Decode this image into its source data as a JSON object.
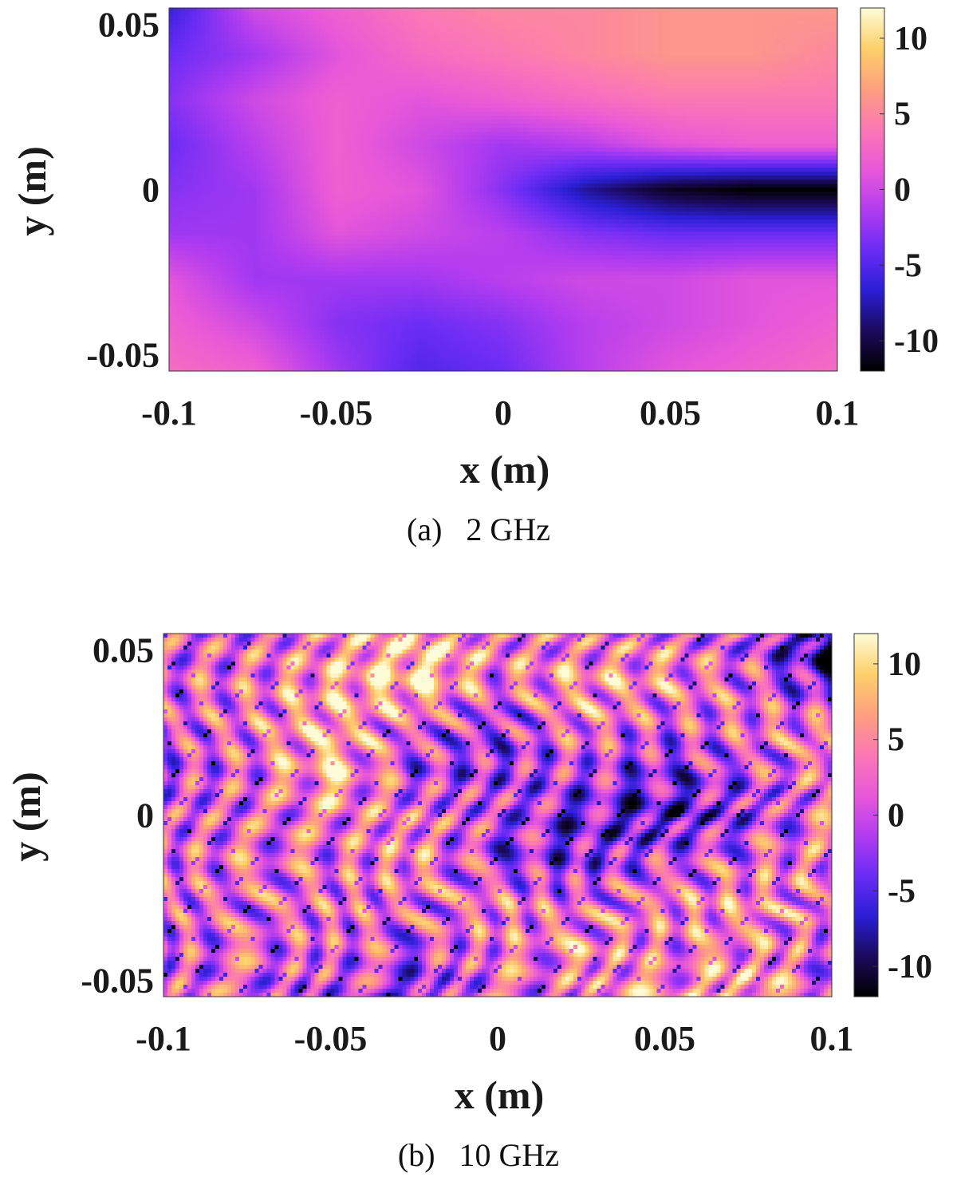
{
  "colormap": [
    "#000000",
    "#1a0a5c",
    "#2b1fd6",
    "#6b2cf5",
    "#b23cf0",
    "#e858d8",
    "#fb78b4",
    "#fda07e",
    "#fdd06a",
    "#fefcd8"
  ],
  "chart_data": [
    {
      "type": "heatmap",
      "caption": "(a)   2 GHz",
      "xlabel": "x (m)",
      "ylabel": "y (m)",
      "xlim": [
        -0.1,
        0.1
      ],
      "ylim": [
        -0.055,
        0.055
      ],
      "clim": [
        -12,
        12
      ],
      "xticks": [
        {
          "v": -0.1,
          "label": "-0.1"
        },
        {
          "v": -0.05,
          "label": "-0.05"
        },
        {
          "v": 0,
          "label": "0"
        },
        {
          "v": 0.05,
          "label": "0.05"
        },
        {
          "v": 0.1,
          "label": "0.1"
        }
      ],
      "yticks": [
        {
          "v": 0.05,
          "label": "0.05"
        },
        {
          "v": 0,
          "label": "0"
        },
        {
          "v": -0.05,
          "label": "-0.05"
        }
      ],
      "cticks": [
        {
          "v": 10,
          "label": "10"
        },
        {
          "v": 5,
          "label": "5"
        },
        {
          "v": 0,
          "label": "0"
        },
        {
          "v": -5,
          "label": "-5"
        },
        {
          "v": -10,
          "label": "-10"
        }
      ],
      "colorbar": "right",
      "pattern": "smooth",
      "grid": [
        [
          -6,
          0,
          2,
          4,
          5,
          5,
          6,
          6,
          6
        ],
        [
          -4,
          -2,
          1,
          3,
          4,
          5,
          6,
          6,
          5
        ],
        [
          -3,
          0,
          2,
          1,
          2,
          3,
          4,
          4,
          4
        ],
        [
          -4,
          -1,
          2,
          0,
          -2,
          -1,
          1,
          2,
          2
        ],
        [
          -3,
          -2,
          2,
          1,
          -3,
          -8,
          -11,
          -12,
          -12
        ],
        [
          -2,
          -2,
          1,
          0,
          -1,
          -3,
          -4,
          -4,
          -4
        ],
        [
          1,
          -2,
          -2,
          -2,
          -1,
          0,
          0,
          1,
          1
        ],
        [
          2,
          0,
          -3,
          -4,
          -3,
          -1,
          0,
          1,
          2
        ],
        [
          3,
          2,
          -2,
          -5,
          -4,
          -1,
          1,
          2,
          3
        ]
      ]
    },
    {
      "type": "heatmap",
      "caption": "(b)   10 GHz",
      "xlabel": "x (m)",
      "ylabel": "y (m)",
      "xlim": [
        -0.1,
        0.1
      ],
      "ylim": [
        -0.055,
        0.055
      ],
      "clim": [
        -12,
        12
      ],
      "xticks": [
        {
          "v": -0.1,
          "label": "-0.1"
        },
        {
          "v": -0.05,
          "label": "-0.05"
        },
        {
          "v": 0,
          "label": "0"
        },
        {
          "v": 0.05,
          "label": "0.05"
        },
        {
          "v": 0.1,
          "label": "0.1"
        }
      ],
      "yticks": [
        {
          "v": 0.05,
          "label": "0.05"
        },
        {
          "v": 0,
          "label": "0"
        },
        {
          "v": -0.05,
          "label": "-0.05"
        }
      ],
      "cticks": [
        {
          "v": 10,
          "label": "10"
        },
        {
          "v": 5,
          "label": "5"
        },
        {
          "v": 0,
          "label": "0"
        },
        {
          "v": -5,
          "label": "-5"
        },
        {
          "v": -10,
          "label": "-10"
        }
      ],
      "colorbar": "right",
      "pattern": "fringes",
      "grid": [
        [
          1,
          2,
          4,
          8,
          4,
          2,
          3,
          0,
          -10
        ],
        [
          2,
          3,
          6,
          10,
          3,
          6,
          5,
          2,
          -6
        ],
        [
          1,
          3,
          7,
          2,
          -2,
          4,
          1,
          3,
          4
        ],
        [
          0,
          2,
          8,
          -1,
          -2,
          0,
          -3,
          0,
          4
        ],
        [
          1,
          2,
          4,
          3,
          0,
          -4,
          -6,
          -2,
          3
        ],
        [
          2,
          3,
          2,
          5,
          -2,
          -3,
          0,
          2,
          4
        ],
        [
          2,
          2,
          3,
          2,
          4,
          2,
          4,
          5,
          3
        ],
        [
          1,
          2,
          2,
          0,
          3,
          5,
          3,
          4,
          2
        ],
        [
          2,
          1,
          0,
          -3,
          2,
          3,
          5,
          7,
          1
        ]
      ]
    }
  ]
}
